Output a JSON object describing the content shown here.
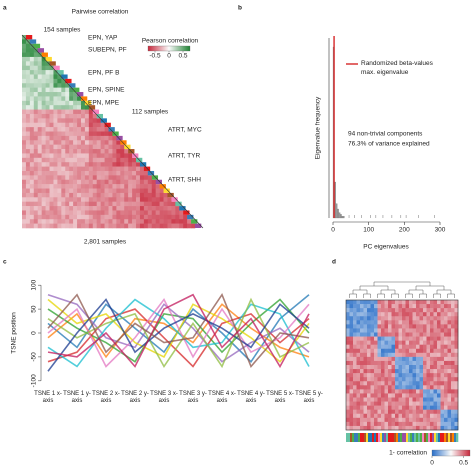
{
  "chart_data": [
    {
      "type": "heatmap",
      "panel": "a",
      "title": "Pairwise correlation",
      "annotations": [
        "154 samples",
        "112 samples",
        "2,801 samples"
      ],
      "row_groups": [
        "EPN, YAP",
        "SUBEPN, PF",
        "EPN, PF B",
        "EPN, SPINE",
        "EPN, MPE",
        "ATRT, MYC",
        "ATRT, TYR",
        "ATRT, SHH"
      ],
      "colorbar_label": "Pearson correlation",
      "colorbar_lim": [
        -0.75,
        0.75
      ],
      "colorbar_ticks": [
        -0.5,
        0,
        0.5
      ]
    },
    {
      "type": "histogram",
      "panel": "b",
      "bins": [
        0,
        4,
        8,
        12,
        16,
        20,
        24,
        28,
        32
      ],
      "values": [
        95,
        20,
        8,
        5,
        3,
        2,
        1,
        1
      ],
      "color": "#999999",
      "ylim": [
        0,
        100
      ],
      "xlim": [
        0,
        300
      ],
      "xticks": [
        0,
        100,
        200,
        300
      ],
      "threshold": 3,
      "threshold_color": "#d62728",
      "outliers": [
        45,
        60,
        80,
        105,
        120,
        140,
        165,
        190,
        205,
        240,
        285
      ],
      "legend": "Randomized beta-values max. eigenvalue",
      "annotations": [
        "94 non-trivial components",
        "76.3% of variance explained"
      ],
      "ylabel": "Eigenvalue frequency",
      "xlabel": "PC eigenvalues"
    },
    {
      "type": "parallel",
      "panel": "c",
      "categories": [
        "TSNE 1 x-axis",
        "TSNE 1 y-axis",
        "TSNE 2 x-axis",
        "TSNE 2 y-axis",
        "TSNE 3 x-axis",
        "TSNE 3 y-axis",
        "TSNE 4 x-axis",
        "TSNE 4 y-axis",
        "TSNE 5 x-axis",
        "TSNE 5 y-axis"
      ],
      "ylim": [
        -115,
        115
      ],
      "yticks": [
        -100,
        -50,
        0,
        50,
        100
      ],
      "ylabel": "TSNE position",
      "series": [
        {
          "color": "#1f77b4",
          "values": [
            20,
            -30,
            60,
            10,
            -40,
            50,
            0,
            -60,
            30,
            80
          ]
        },
        {
          "color": "#ff7f0e",
          "values": [
            -10,
            40,
            -50,
            30,
            20,
            -20,
            60,
            10,
            -30,
            -50
          ]
        },
        {
          "color": "#2ca02c",
          "values": [
            50,
            10,
            -20,
            -60,
            40,
            30,
            -40,
            20,
            70,
            0
          ]
        },
        {
          "color": "#d62728",
          "values": [
            -60,
            -40,
            30,
            50,
            -10,
            -70,
            20,
            40,
            -20,
            30
          ]
        },
        {
          "color": "#9467bd",
          "values": [
            80,
            60,
            -10,
            -30,
            60,
            10,
            -60,
            -20,
            10,
            -40
          ]
        },
        {
          "color": "#e6d600",
          "values": [
            70,
            20,
            40,
            -20,
            -50,
            60,
            30,
            -10,
            -60,
            20
          ]
        },
        {
          "color": "#17becf",
          "values": [
            -30,
            -70,
            10,
            70,
            30,
            -30,
            -20,
            60,
            40,
            -70
          ]
        },
        {
          "color": "#e377c2",
          "values": [
            0,
            50,
            -70,
            -10,
            70,
            -50,
            50,
            -40,
            -10,
            60
          ]
        },
        {
          "color": "#8fbc3f",
          "values": [
            30,
            -10,
            20,
            40,
            -70,
            20,
            -70,
            70,
            -50,
            -20
          ]
        },
        {
          "color": "#1a3a8f",
          "values": [
            -80,
            0,
            70,
            -40,
            10,
            40,
            10,
            -30,
            60,
            10
          ]
        },
        {
          "color": "#8c564b",
          "values": [
            10,
            80,
            -40,
            20,
            -20,
            -10,
            80,
            -70,
            0,
            -10
          ]
        },
        {
          "color": "#c2185b",
          "values": [
            -40,
            -50,
            0,
            -70,
            50,
            80,
            -30,
            30,
            -70,
            40
          ]
        }
      ]
    },
    {
      "type": "clustermap",
      "panel": "d",
      "colorbar_label": "1- correlation",
      "colorbar_lim": [
        0,
        0.6
      ],
      "colorbar_ticks": [
        0,
        0.5
      ]
    }
  ]
}
